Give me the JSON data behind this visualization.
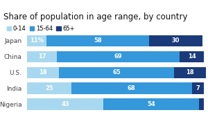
{
  "title": "Share of population in age range, by country",
  "countries": [
    "Japan",
    "China",
    "U.S.",
    "India",
    "Nigeria"
  ],
  "age_0_14": [
    11,
    17,
    18,
    25,
    43
  ],
  "age_15_64": [
    58,
    69,
    65,
    68,
    54
  ],
  "age_65plus": [
    30,
    14,
    18,
    7,
    3
  ],
  "color_0_14": "#a8d8f0",
  "color_15_64": "#3498db",
  "color_65plus": "#1a3a7a",
  "legend_labels": [
    "0-14",
    "15-64",
    "65+"
  ],
  "bar_height": 0.72,
  "title_fontsize": 8.5,
  "label_fontsize": 6.0,
  "tick_fontsize": 6.5,
  "legend_fontsize": 6.0,
  "bg_color": "#ffffff"
}
